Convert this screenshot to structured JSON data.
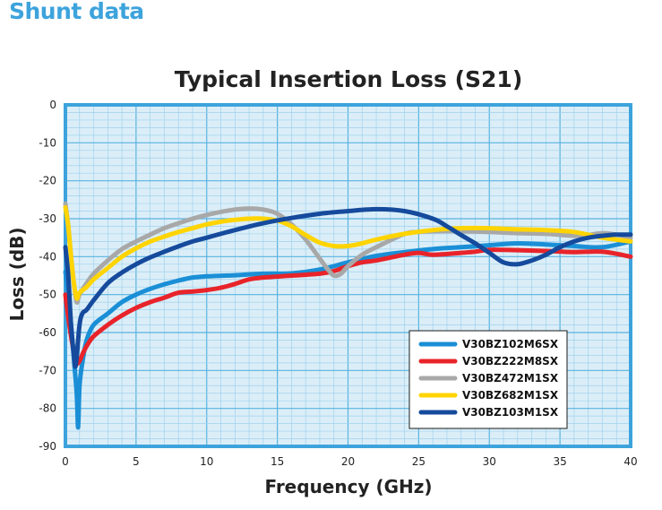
{
  "page": {
    "section_title": "Shunt data"
  },
  "colors": {
    "accent": "#3da3dc",
    "plot_background": "#dbeef8",
    "plot_border": "#3da3dc",
    "grid_minor": "#9fd1ec",
    "grid_major": "#59b2e0"
  },
  "chart_data": {
    "type": "line",
    "title": "Typical Insertion Loss (S21)",
    "xlabel": "Frequency (GHz)",
    "ylabel": "Loss (dB)",
    "xlim": [
      0,
      40
    ],
    "ylim": [
      -90,
      0
    ],
    "xticks": [
      0,
      5,
      10,
      15,
      20,
      25,
      30,
      35,
      40
    ],
    "yticks": [
      0,
      -10,
      -20,
      -30,
      -40,
      -50,
      -60,
      -70,
      -80,
      -90
    ],
    "grid": true,
    "legend_position": "bottom-right",
    "series": [
      {
        "name": "V30BZ102M6SX",
        "color": "#1a8fd6",
        "x": [
          0,
          0.2,
          0.4,
          0.6,
          0.8,
          0.9,
          1.0,
          1.2,
          1.5,
          2,
          3,
          4,
          5,
          6,
          7,
          8,
          9,
          10,
          12,
          14,
          16,
          18,
          20,
          22,
          24,
          26,
          28,
          30,
          32,
          34,
          36,
          38,
          40
        ],
        "y": [
          -44,
          -50,
          -58,
          -67,
          -76,
          -85,
          -74,
          -68,
          -62,
          -58,
          -55,
          -52,
          -50,
          -48.5,
          -47.3,
          -46.3,
          -45.5,
          -45.2,
          -44.9,
          -44.5,
          -44.4,
          -43.4,
          -41.5,
          -39.8,
          -38.8,
          -38,
          -37.5,
          -37,
          -36.5,
          -36.8,
          -37.2,
          -37.5,
          -36
        ]
      },
      {
        "name": "V30BZ222M8SX",
        "color": "#e8242a",
        "x": [
          0,
          0.2,
          0.4,
          0.6,
          0.8,
          1.0,
          1.3,
          1.6,
          2,
          3,
          4,
          5,
          6,
          7,
          8,
          9,
          10,
          11,
          12,
          13,
          14,
          16,
          18,
          19,
          20,
          21,
          22,
          24,
          25,
          26,
          28,
          29,
          30,
          32,
          34,
          36,
          38,
          40
        ],
        "y": [
          -50,
          -56,
          -61,
          -65,
          -68,
          -67.5,
          -65,
          -63,
          -61,
          -58,
          -55.5,
          -53.5,
          -52,
          -50.8,
          -49.5,
          -49.2,
          -48.8,
          -48.2,
          -47.2,
          -46,
          -45.5,
          -45,
          -44.5,
          -43.8,
          -42.5,
          -41.5,
          -41,
          -39.5,
          -39,
          -39.5,
          -39,
          -38.7,
          -38.2,
          -38.3,
          -38.5,
          -38.8,
          -38.7,
          -40
        ]
      },
      {
        "name": "V30BZ472M1SX",
        "color": "#a8a8a8",
        "x": [
          0,
          0.2,
          0.4,
          0.6,
          0.8,
          1.0,
          1.5,
          2,
          3,
          4,
          5,
          6,
          7,
          8,
          9,
          10,
          11,
          12,
          13,
          14,
          15,
          16,
          17,
          18,
          18.5,
          19,
          19.5,
          20,
          21,
          22,
          24,
          25,
          26,
          28,
          30,
          32,
          34,
          36,
          37,
          38,
          39,
          40
        ],
        "y": [
          -26,
          -32,
          -40,
          -47,
          -52,
          -50,
          -47,
          -44.5,
          -41,
          -38,
          -36,
          -34.2,
          -32.5,
          -31.2,
          -30,
          -29,
          -28.2,
          -27.6,
          -27.3,
          -27.6,
          -28.7,
          -31.5,
          -35.5,
          -40.5,
          -43,
          -45,
          -44.5,
          -42.5,
          -39.5,
          -37.5,
          -34,
          -33.5,
          -33.3,
          -33.3,
          -33.5,
          -33.8,
          -34,
          -34.5,
          -34.3,
          -33.8,
          -34.2,
          -35
        ]
      },
      {
        "name": "V30BZ682M1SX",
        "color": "#ffd400",
        "x": [
          0,
          0.2,
          0.4,
          0.6,
          0.8,
          1.0,
          1.5,
          2,
          3,
          4,
          5,
          6,
          7,
          8,
          9,
          10,
          11,
          12,
          13,
          14,
          15,
          16,
          17,
          18,
          19,
          20,
          21,
          22,
          24,
          26,
          28,
          30,
          32,
          34,
          36,
          38,
          40
        ],
        "y": [
          -27,
          -32,
          -40,
          -47,
          -51,
          -49.5,
          -48,
          -46,
          -43,
          -40,
          -37.8,
          -36,
          -34.7,
          -33.5,
          -32.5,
          -31.5,
          -30.8,
          -30.3,
          -30,
          -30,
          -30.5,
          -32,
          -34.3,
          -36.3,
          -37.2,
          -37.2,
          -36.5,
          -35.5,
          -34,
          -33,
          -32.5,
          -32.5,
          -32.8,
          -33,
          -33.5,
          -35,
          -36
        ]
      },
      {
        "name": "V30BZ103M1SX",
        "color": "#154a9c",
        "x": [
          0,
          0.2,
          0.4,
          0.6,
          0.7,
          0.8,
          1.0,
          1.2,
          1.5,
          2,
          3,
          4,
          5,
          6,
          7,
          8,
          9,
          10,
          12,
          14,
          16,
          18,
          20,
          22,
          24,
          26,
          27,
          28,
          29,
          30,
          31,
          32,
          33,
          34,
          35,
          36,
          37,
          38,
          39,
          40
        ],
        "y": [
          -37.5,
          -45,
          -58,
          -66,
          -69,
          -66.5,
          -58,
          -55,
          -54,
          -51.5,
          -47,
          -44.2,
          -42,
          -40.2,
          -38.7,
          -37.3,
          -36,
          -35,
          -33,
          -31.2,
          -29.8,
          -28.7,
          -28,
          -27.5,
          -28,
          -30,
          -32,
          -34.3,
          -36.5,
          -39,
          -41.5,
          -42,
          -41,
          -39.5,
          -37.5,
          -36,
          -35,
          -34.5,
          -34.2,
          -34.2
        ]
      }
    ]
  }
}
